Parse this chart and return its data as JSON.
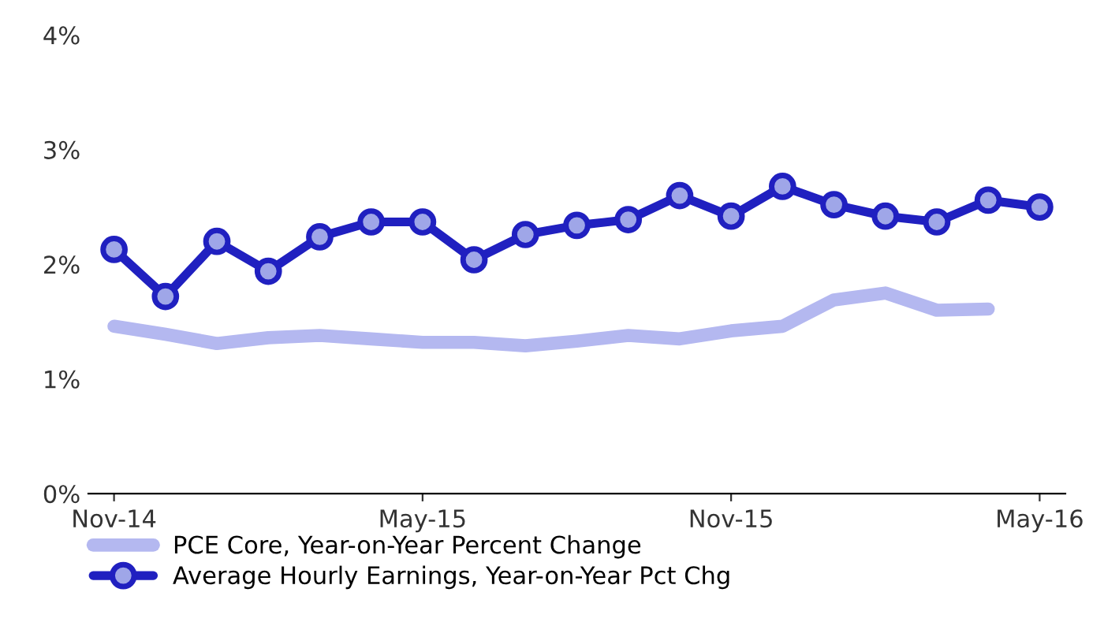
{
  "chart_data": {
    "type": "line",
    "categories": [
      "Nov-14",
      null,
      null,
      null,
      null,
      null,
      "May-15",
      null,
      null,
      null,
      null,
      null,
      "Nov-15",
      null,
      null,
      null,
      null,
      null,
      "May-16"
    ],
    "series": [
      {
        "name": "PCE Core, Year-on-Year Percent Change",
        "color": "#b4b8f0",
        "marker": "none",
        "values": [
          1.46,
          1.39,
          1.31,
          1.36,
          1.38,
          1.35,
          1.32,
          1.32,
          1.29,
          1.33,
          1.38,
          1.35,
          1.42,
          1.46,
          1.69,
          1.75,
          1.6,
          1.61,
          null
        ]
      },
      {
        "name": "Average Hourly Earnings, Year-on-Year Pct Chg",
        "color": "#2020c0",
        "marker": "circle",
        "values": [
          2.13,
          1.72,
          2.2,
          1.94,
          2.24,
          2.37,
          2.37,
          2.04,
          2.26,
          2.34,
          2.39,
          2.6,
          2.42,
          2.68,
          2.52,
          2.42,
          2.37,
          2.56,
          2.5
        ]
      }
    ],
    "ylim": [
      0,
      4
    ],
    "yticks": [
      {
        "value": 0,
        "label": "0%"
      },
      {
        "value": 1,
        "label": "1%"
      },
      {
        "value": 2,
        "label": "2%"
      },
      {
        "value": 3,
        "label": "3%"
      },
      {
        "value": 4,
        "label": "4%"
      }
    ],
    "grid": false,
    "legend": "bottom left"
  }
}
